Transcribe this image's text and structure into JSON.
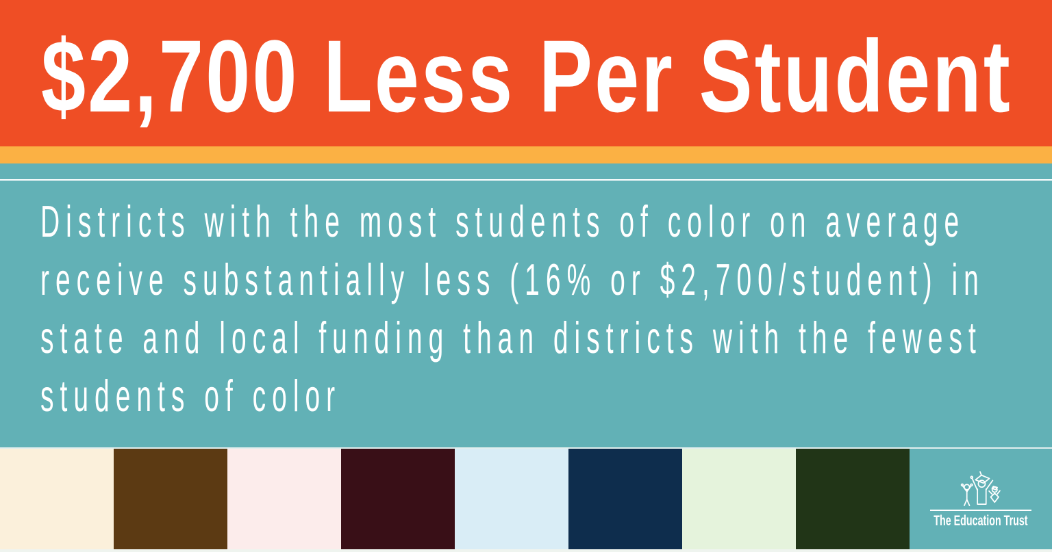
{
  "infographic": {
    "headline": "$2,700 Less Per Student",
    "description_lines": [
      "Districts with the most students of color on average",
      "receive substantially less (16% or $2,700/student) in",
      "state and local funding than districts with the fewest",
      "students of color"
    ]
  },
  "brand": {
    "name": "The Education Trust",
    "logo_icon": "education-trust-children-icon"
  },
  "colors": {
    "banner_bg": "#EF4E25",
    "stripe_yellow": "#FBB144",
    "teal": "#62B1B6",
    "text_white": "#FFFFFF",
    "divider_white": "#FFFFFF",
    "divider_pale": "#E2EFEE",
    "bottom_strip": "#EFF4EF"
  },
  "palette": {
    "swatches": [
      {
        "name": "swatch-cream",
        "color": "#FBF0DB"
      },
      {
        "name": "swatch-dark-brown",
        "color": "#5C3A13"
      },
      {
        "name": "swatch-blush-pink",
        "color": "#FCECEB"
      },
      {
        "name": "swatch-dark-maroon",
        "color": "#390F17"
      },
      {
        "name": "swatch-pale-blue",
        "color": "#D9EDF6"
      },
      {
        "name": "swatch-navy",
        "color": "#0E2D4D"
      },
      {
        "name": "swatch-pale-mint",
        "color": "#E5F3DC"
      },
      {
        "name": "swatch-dark-green",
        "color": "#213517"
      }
    ]
  }
}
